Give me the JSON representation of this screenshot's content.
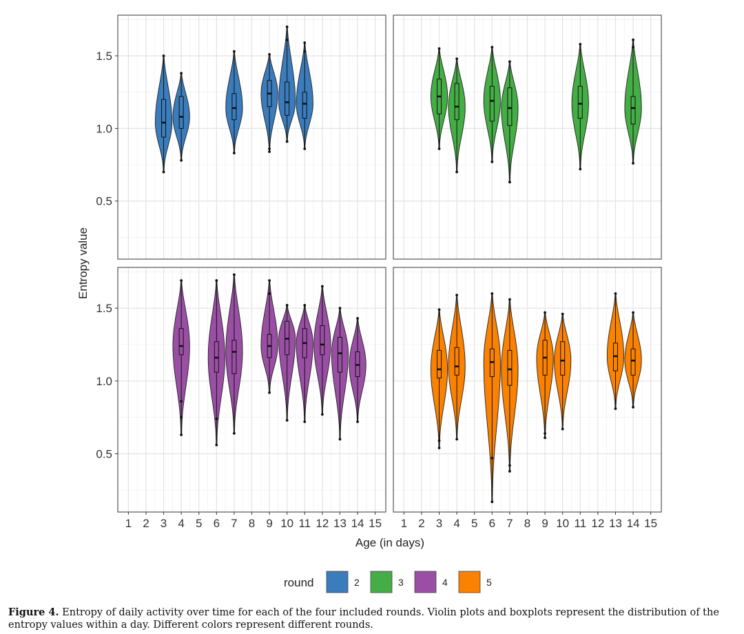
{
  "chart_data": {
    "type": "violin",
    "ylabel": "Entropy value",
    "xlabel": "Age (in days)",
    "x_ticks": [
      "1",
      "2",
      "3",
      "4",
      "5",
      "6",
      "7",
      "8",
      "9",
      "10",
      "11",
      "12",
      "13",
      "14",
      "15"
    ],
    "y_ticks": [
      "0.5",
      "1.0",
      "1.5"
    ],
    "ylim": [
      0.1,
      1.78
    ],
    "xlim": [
      0.4,
      15.6
    ],
    "grid": true,
    "legend": {
      "title": "round",
      "position": "bottom"
    },
    "colors": {
      "2": "#3a7cbc",
      "3": "#44ad45",
      "4": "#9a4fa5",
      "5": "#fb8100"
    },
    "panels": [
      {
        "round": "2",
        "series": [
          {
            "x": 3,
            "min": 0.7,
            "max": 1.5,
            "q1": 0.94,
            "median": 1.04,
            "q3": 1.2,
            "outliers": []
          },
          {
            "x": 4,
            "min": 0.78,
            "max": 1.38,
            "q1": 1.0,
            "median": 1.08,
            "q3": 1.22,
            "outliers": []
          },
          {
            "x": 7,
            "min": 0.83,
            "max": 1.53,
            "q1": 1.06,
            "median": 1.14,
            "q3": 1.24,
            "outliers": []
          },
          {
            "x": 9,
            "min": 0.84,
            "max": 1.51,
            "q1": 1.15,
            "median": 1.24,
            "q3": 1.33,
            "outliers": [
              0.86
            ]
          },
          {
            "x": 10,
            "min": 0.91,
            "max": 1.7,
            "q1": 1.09,
            "median": 1.18,
            "q3": 1.32,
            "outliers": [
              1.61
            ]
          },
          {
            "x": 11,
            "min": 0.86,
            "max": 1.59,
            "q1": 1.07,
            "median": 1.17,
            "q3": 1.25,
            "outliers": [
              1.53
            ]
          }
        ]
      },
      {
        "round": "3",
        "series": [
          {
            "x": 3,
            "min": 0.86,
            "max": 1.55,
            "q1": 1.1,
            "median": 1.22,
            "q3": 1.34,
            "outliers": []
          },
          {
            "x": 4,
            "min": 0.7,
            "max": 1.48,
            "q1": 1.06,
            "median": 1.15,
            "q3": 1.31,
            "outliers": []
          },
          {
            "x": 6,
            "min": 0.77,
            "max": 1.56,
            "q1": 1.05,
            "median": 1.19,
            "q3": 1.29,
            "outliers": []
          },
          {
            "x": 7,
            "min": 0.63,
            "max": 1.46,
            "q1": 1.02,
            "median": 1.14,
            "q3": 1.28,
            "outliers": []
          },
          {
            "x": 11,
            "min": 0.72,
            "max": 1.58,
            "q1": 1.07,
            "median": 1.17,
            "q3": 1.29,
            "outliers": []
          },
          {
            "x": 14,
            "min": 0.76,
            "max": 1.61,
            "q1": 1.03,
            "median": 1.14,
            "q3": 1.22,
            "outliers": [
              1.56
            ]
          }
        ]
      },
      {
        "round": "4",
        "series": [
          {
            "x": 4,
            "min": 0.63,
            "max": 1.69,
            "q1": 1.18,
            "median": 1.24,
            "q3": 1.36,
            "outliers": [
              0.75,
              0.86
            ]
          },
          {
            "x": 6,
            "min": 0.56,
            "max": 1.69,
            "q1": 1.06,
            "median": 1.16,
            "q3": 1.27,
            "outliers": [
              0.74
            ]
          },
          {
            "x": 7,
            "min": 0.64,
            "max": 1.73,
            "q1": 1.05,
            "median": 1.2,
            "q3": 1.28,
            "outliers": []
          },
          {
            "x": 9,
            "min": 0.92,
            "max": 1.69,
            "q1": 1.16,
            "median": 1.24,
            "q3": 1.32,
            "outliers": [
              1.6
            ]
          },
          {
            "x": 10,
            "min": 0.73,
            "max": 1.52,
            "q1": 1.18,
            "median": 1.29,
            "q3": 1.41,
            "outliers": []
          },
          {
            "x": 11,
            "min": 0.72,
            "max": 1.52,
            "q1": 1.16,
            "median": 1.26,
            "q3": 1.36,
            "outliers": []
          },
          {
            "x": 12,
            "min": 0.77,
            "max": 1.65,
            "q1": 1.18,
            "median": 1.25,
            "q3": 1.38,
            "outliers": []
          },
          {
            "x": 13,
            "min": 0.6,
            "max": 1.5,
            "q1": 1.06,
            "median": 1.19,
            "q3": 1.3,
            "outliers": []
          },
          {
            "x": 14,
            "min": 0.72,
            "max": 1.43,
            "q1": 1.03,
            "median": 1.11,
            "q3": 1.2,
            "outliers": []
          }
        ]
      },
      {
        "round": "5",
        "series": [
          {
            "x": 3,
            "min": 0.54,
            "max": 1.49,
            "q1": 1.02,
            "median": 1.08,
            "q3": 1.21,
            "outliers": [
              0.59
            ]
          },
          {
            "x": 4,
            "min": 0.6,
            "max": 1.59,
            "q1": 1.04,
            "median": 1.1,
            "q3": 1.23,
            "outliers": []
          },
          {
            "x": 6,
            "min": 0.17,
            "max": 1.6,
            "q1": 1.03,
            "median": 1.13,
            "q3": 1.22,
            "outliers": [
              0.47
            ]
          },
          {
            "x": 7,
            "min": 0.38,
            "max": 1.56,
            "q1": 0.97,
            "median": 1.08,
            "q3": 1.21,
            "outliers": [
              0.42
            ]
          },
          {
            "x": 9,
            "min": 0.61,
            "max": 1.47,
            "q1": 1.04,
            "median": 1.16,
            "q3": 1.28,
            "outliers": [
              0.64
            ]
          },
          {
            "x": 10,
            "min": 0.67,
            "max": 1.46,
            "q1": 1.04,
            "median": 1.14,
            "q3": 1.27,
            "outliers": []
          },
          {
            "x": 13,
            "min": 0.81,
            "max": 1.6,
            "q1": 1.07,
            "median": 1.17,
            "q3": 1.26,
            "outliers": []
          },
          {
            "x": 14,
            "min": 0.82,
            "max": 1.47,
            "q1": 1.04,
            "median": 1.14,
            "q3": 1.22,
            "outliers": []
          }
        ]
      }
    ]
  },
  "caption": {
    "label": "Figure 4.",
    "text": " Entropy of daily activity over time for each of the four included rounds. Violin plots and boxplots represent the distribution of the entropy values within a day. Different colors represent different rounds."
  }
}
